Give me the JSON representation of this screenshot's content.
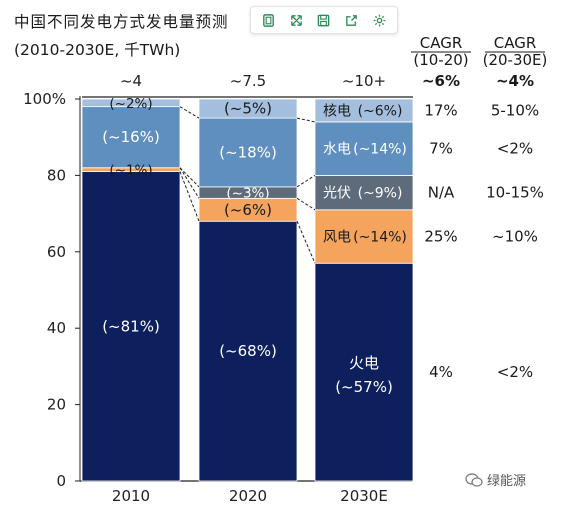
{
  "title": "中国不同发电方式发电量预测",
  "subtitle": "(2010-2030E, 千TWh)",
  "toolbar": {
    "icons": [
      "frame-icon",
      "expand-icon",
      "save-icon",
      "share-icon",
      "settings-icon"
    ]
  },
  "watermark": "绿能源",
  "chart_data": {
    "type": "bar",
    "stacked": true,
    "normalized": true,
    "categories": [
      "2010",
      "2020",
      "2030E"
    ],
    "totals": [
      "~4",
      "~7.5",
      "~10+"
    ],
    "ylim": [
      0,
      100
    ],
    "yticks": [
      0,
      20,
      40,
      60,
      80,
      100
    ],
    "ytick_labels": [
      "0",
      "20",
      "40",
      "60",
      "80",
      "100%"
    ],
    "series": [
      {
        "name": "火电",
        "color": "#0d1f5c",
        "values": [
          81,
          68,
          57
        ],
        "labels": [
          "(~81%)",
          "(~68%)",
          "(~57%)"
        ]
      },
      {
        "name": "风电",
        "color": "#f5a45d",
        "values": [
          1,
          6,
          14
        ],
        "labels": [
          "(~1%)",
          "(~6%)",
          "(~14%)"
        ]
      },
      {
        "name": "光伏",
        "color": "#5e6b7a",
        "values": [
          0,
          3,
          9
        ],
        "labels": [
          "",
          "(~3%)",
          "(~9%)"
        ]
      },
      {
        "name": "水电",
        "color": "#5f8fbf",
        "values": [
          16,
          18,
          14
        ],
        "labels": [
          "(~16%)",
          "(~18%)",
          "(~14%)"
        ]
      },
      {
        "name": "核电",
        "color": "#a3bfdd",
        "values": [
          2,
          5,
          6
        ],
        "labels": [
          "(~2%)",
          "(~5%)",
          "(~6%)"
        ]
      }
    ],
    "cagr": {
      "headers": [
        [
          "CAGR",
          "(10-20)"
        ],
        [
          "CAGR",
          "(20-30E)"
        ]
      ],
      "total": [
        "~6%",
        "~4%"
      ],
      "rows": [
        {
          "series": "核电",
          "values": [
            "17%",
            "5-10%"
          ]
        },
        {
          "series": "水电",
          "values": [
            "7%",
            "<2%"
          ]
        },
        {
          "series": "光伏",
          "values": [
            "N/A",
            "10-15%"
          ]
        },
        {
          "series": "风电",
          "values": [
            "25%",
            "~10%"
          ]
        },
        {
          "series": "火电",
          "values": [
            "4%",
            "<2%"
          ]
        }
      ]
    }
  }
}
